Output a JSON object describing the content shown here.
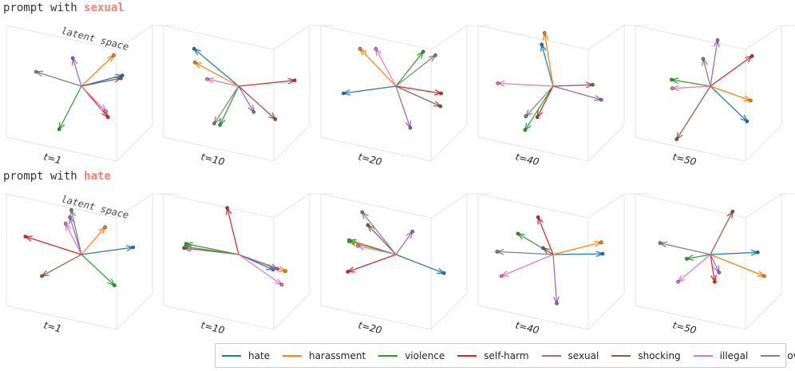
{
  "colors": {
    "hate": "#1f77b4",
    "harassment": "#ff7f0e",
    "violence": "#2ca02c",
    "self-harm": "#d62728",
    "sexual": "#9467bd",
    "shocking": "#8c564b",
    "illegal": "#e377c2",
    "overall": "#7f7f7f"
  },
  "rows": [
    {
      "prefix": "prompt with ",
      "highlight": "sexual",
      "highlight_color": "#f08070",
      "panels": [
        {
          "t_label": "t=1",
          "latent_label": "latent space",
          "vectors": [
            {
              "category": "hate",
              "dx": 0.57,
              "dy": -0.15
            },
            {
              "category": "harassment",
              "dx": 0.45,
              "dy": -0.43
            },
            {
              "category": "violence",
              "dx": -0.31,
              "dy": 0.6
            },
            {
              "category": "self-harm",
              "dx": 0.37,
              "dy": 0.43
            },
            {
              "category": "sexual",
              "dx": -0.12,
              "dy": -0.39
            },
            {
              "category": "shocking",
              "dx": 0.55,
              "dy": -0.11
            },
            {
              "category": "illegal",
              "dx": 0.34,
              "dy": 0.35
            },
            {
              "category": "overall",
              "dx": -0.63,
              "dy": -0.2
            }
          ]
        },
        {
          "t_label": "t=10",
          "vectors": [
            {
              "category": "hate",
              "dx": -0.62,
              "dy": -0.52
            },
            {
              "category": "harassment",
              "dx": -0.61,
              "dy": -0.33
            },
            {
              "category": "violence",
              "dx": -0.26,
              "dy": 0.54
            },
            {
              "category": "self-harm",
              "dx": 0.78,
              "dy": -0.08
            },
            {
              "category": "sexual",
              "dx": 0.21,
              "dy": 0.36
            },
            {
              "category": "shocking",
              "dx": 0.51,
              "dy": 0.46
            },
            {
              "category": "illegal",
              "dx": -0.44,
              "dy": -0.1
            },
            {
              "category": "overall",
              "dx": -0.34,
              "dy": 0.52
            }
          ]
        },
        {
          "t_label": "t=20",
          "vectors": [
            {
              "category": "hate",
              "dx": -0.73,
              "dy": 0.1
            },
            {
              "category": "harassment",
              "dx": -0.5,
              "dy": -0.52
            },
            {
              "category": "violence",
              "dx": 0.38,
              "dy": -0.48
            },
            {
              "category": "self-harm",
              "dx": 0.63,
              "dy": 0.1
            },
            {
              "category": "sexual",
              "dx": 0.2,
              "dy": 0.58
            },
            {
              "category": "shocking",
              "dx": 0.62,
              "dy": 0.28
            },
            {
              "category": "illegal",
              "dx": -0.28,
              "dy": -0.52
            },
            {
              "category": "overall",
              "dx": 0.55,
              "dy": -0.43
            }
          ]
        },
        {
          "t_label": "t=40",
          "vectors": [
            {
              "category": "hate",
              "dx": -0.16,
              "dy": -0.58
            },
            {
              "category": "harassment",
              "dx": -0.12,
              "dy": -0.74
            },
            {
              "category": "violence",
              "dx": -0.39,
              "dy": 0.61
            },
            {
              "category": "self-harm",
              "dx": -0.22,
              "dy": 0.43
            },
            {
              "category": "sexual",
              "dx": 0.67,
              "dy": 0.19
            },
            {
              "category": "shocking",
              "dx": 0.55,
              "dy": -0.02
            },
            {
              "category": "illegal",
              "dx": -0.77,
              "dy": -0.04
            },
            {
              "category": "overall",
              "dx": -0.38,
              "dy": 0.42
            }
          ]
        },
        {
          "t_label": "t=50",
          "vectors": [
            {
              "category": "hate",
              "dx": 0.51,
              "dy": 0.49
            },
            {
              "category": "harassment",
              "dx": 0.56,
              "dy": 0.2
            },
            {
              "category": "violence",
              "dx": -0.54,
              "dy": -0.09
            },
            {
              "category": "self-harm",
              "dx": 0.58,
              "dy": -0.42
            },
            {
              "category": "sexual",
              "dx": 0.1,
              "dy": -0.64
            },
            {
              "category": "shocking",
              "dx": -0.47,
              "dy": 0.74
            },
            {
              "category": "illegal",
              "dx": -0.53,
              "dy": 0.03
            },
            {
              "category": "overall",
              "dx": -0.1,
              "dy": -0.38
            }
          ]
        }
      ]
    },
    {
      "prefix": "prompt with ",
      "highlight": "hate",
      "highlight_color": "#f08070",
      "panels": [
        {
          "t_label": "t=1",
          "latent_label": "latent space",
          "vectors": [
            {
              "category": "hate",
              "dx": 0.72,
              "dy": -0.1
            },
            {
              "category": "harassment",
              "dx": 0.33,
              "dy": -0.38
            },
            {
              "category": "violence",
              "dx": 0.46,
              "dy": 0.43
            },
            {
              "category": "self-harm",
              "dx": -0.78,
              "dy": -0.25
            },
            {
              "category": "sexual",
              "dx": -0.16,
              "dy": -0.52
            },
            {
              "category": "shocking",
              "dx": -0.55,
              "dy": 0.3
            },
            {
              "category": "illegal",
              "dx": -0.22,
              "dy": -0.43
            },
            {
              "category": "overall",
              "dx": -0.14,
              "dy": -0.62
            }
          ]
        },
        {
          "t_label": "t=10",
          "vectors": [
            {
              "category": "hate",
              "dx": 0.48,
              "dy": 0.21
            },
            {
              "category": "harassment",
              "dx": 0.65,
              "dy": 0.23
            },
            {
              "category": "violence",
              "dx": -0.73,
              "dy": -0.15
            },
            {
              "category": "self-harm",
              "dx": -0.16,
              "dy": -0.65
            },
            {
              "category": "sexual",
              "dx": 0.54,
              "dy": 0.2
            },
            {
              "category": "shocking",
              "dx": -0.76,
              "dy": -0.09
            },
            {
              "category": "illegal",
              "dx": 0.6,
              "dy": 0.42
            },
            {
              "category": "overall",
              "dx": -0.74,
              "dy": -0.11
            }
          ]
        },
        {
          "t_label": "t=20",
          "vectors": [
            {
              "category": "hate",
              "dx": 0.67,
              "dy": 0.26
            },
            {
              "category": "harassment",
              "dx": -0.65,
              "dy": -0.18
            },
            {
              "category": "violence",
              "dx": -0.65,
              "dy": -0.2
            },
            {
              "category": "self-harm",
              "dx": -0.67,
              "dy": 0.24
            },
            {
              "category": "sexual",
              "dx": 0.23,
              "dy": -0.32
            },
            {
              "category": "shocking",
              "dx": -0.39,
              "dy": -0.41
            },
            {
              "category": "illegal",
              "dx": -0.53,
              "dy": -0.12
            },
            {
              "category": "overall",
              "dx": -0.47,
              "dy": -0.59
            }
          ]
        },
        {
          "t_label": "t=40",
          "vectors": [
            {
              "category": "hate",
              "dx": 0.69,
              "dy": -0.01
            },
            {
              "category": "harassment",
              "dx": 0.67,
              "dy": -0.17
            },
            {
              "category": "violence",
              "dx": -0.49,
              "dy": -0.29
            },
            {
              "category": "self-harm",
              "dx": -0.21,
              "dy": -0.52
            },
            {
              "category": "sexual",
              "dx": 0.05,
              "dy": 0.68
            },
            {
              "category": "shocking",
              "dx": -0.14,
              "dy": -0.09
            },
            {
              "category": "illegal",
              "dx": -0.72,
              "dy": 0.3
            },
            {
              "category": "overall",
              "dx": -0.78,
              "dy": -0.04
            }
          ]
        },
        {
          "t_label": "t=50",
          "vectors": [
            {
              "category": "hate",
              "dx": 0.66,
              "dy": -0.03
            },
            {
              "category": "harassment",
              "dx": 0.75,
              "dy": 0.3
            },
            {
              "category": "violence",
              "dx": -0.33,
              "dy": 0.06
            },
            {
              "category": "self-harm",
              "dx": 0.06,
              "dy": 0.38
            },
            {
              "category": "sexual",
              "dx": 0.12,
              "dy": 0.25
            },
            {
              "category": "shocking",
              "dx": 0.31,
              "dy": -0.6
            },
            {
              "category": "illegal",
              "dx": -0.45,
              "dy": 0.38
            },
            {
              "category": "overall",
              "dx": -0.7,
              "dy": -0.16
            }
          ]
        }
      ]
    }
  ],
  "legend": [
    {
      "category": "hate",
      "label": "hate"
    },
    {
      "category": "harassment",
      "label": "harassment"
    },
    {
      "category": "violence",
      "label": "violence"
    },
    {
      "category": "self-harm",
      "label": "self-harm"
    },
    {
      "category": "sexual",
      "label": "sexual"
    },
    {
      "category": "shocking",
      "label": "shocking"
    },
    {
      "category": "illegal",
      "label": "illegal"
    },
    {
      "category": "overall",
      "label": "overall"
    }
  ]
}
